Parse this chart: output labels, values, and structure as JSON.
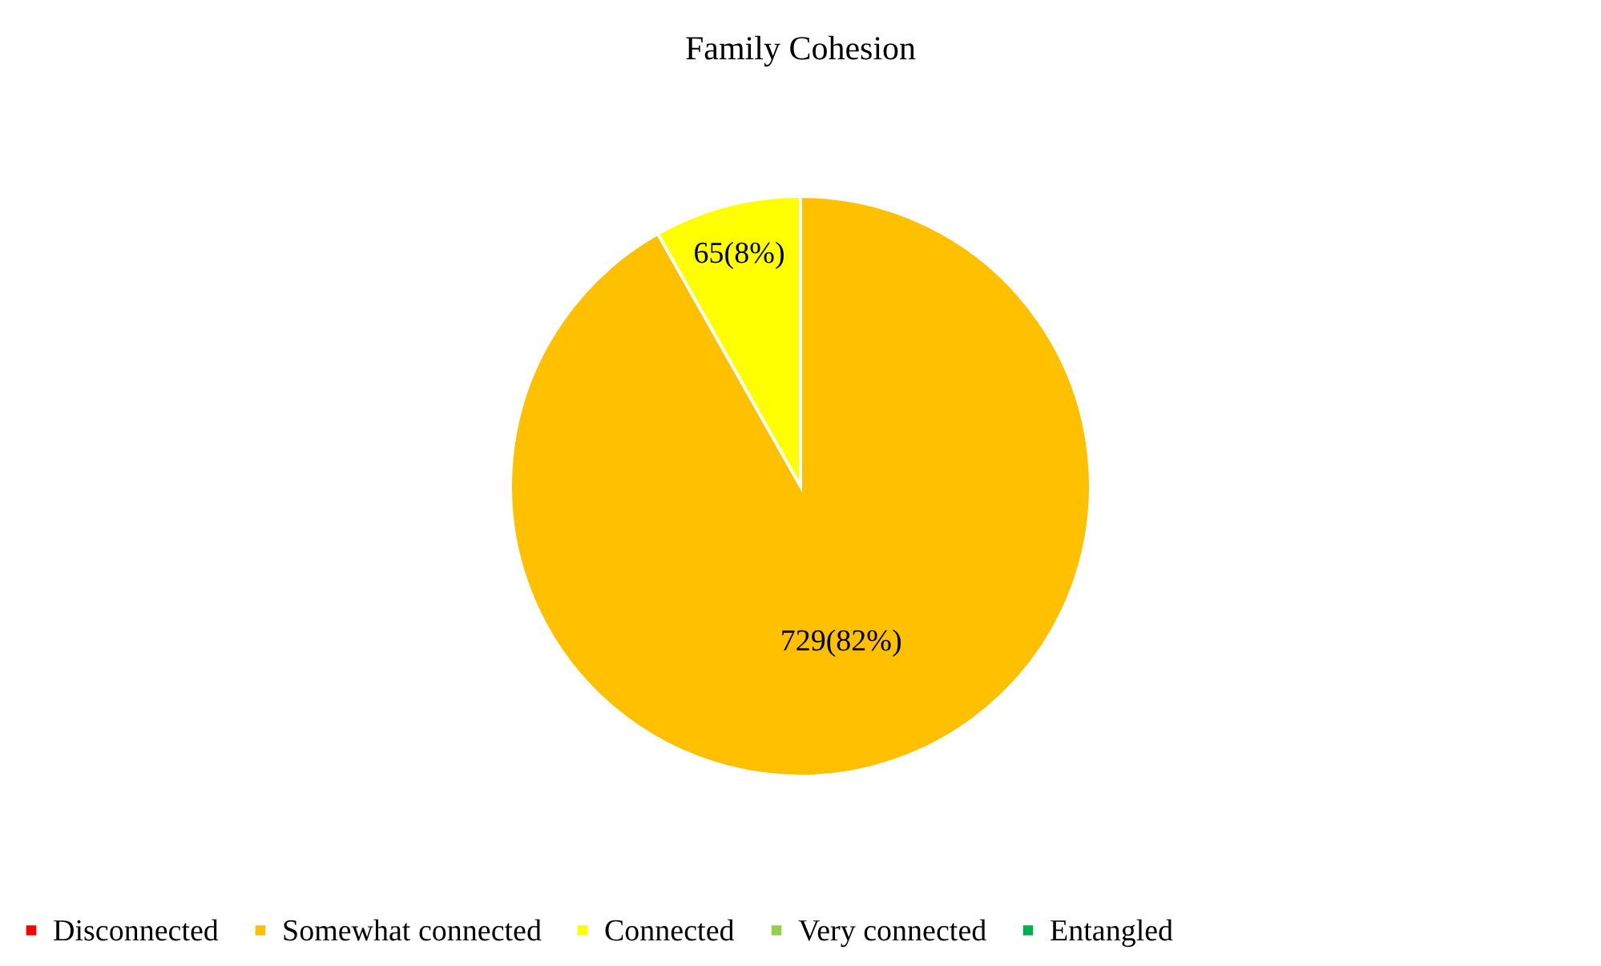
{
  "chart_data": {
    "type": "pie",
    "title": "Family Cohesion",
    "categories": [
      "Disconnected",
      "Somewhat connected",
      "Connected",
      "Very connected",
      "Entangled"
    ],
    "values": [
      0,
      729,
      65,
      0,
      0
    ],
    "colors": [
      "#ff0000",
      "#ffc000",
      "#ffff00",
      "#92d050",
      "#00b050"
    ],
    "value_labels": [
      null,
      "729(82%)",
      "65(8%)",
      null,
      null
    ],
    "legend": "bottom"
  }
}
